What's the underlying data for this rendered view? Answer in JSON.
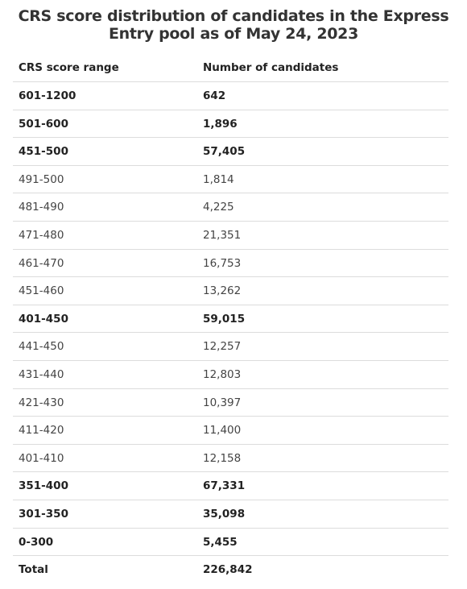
{
  "chart_data": {
    "type": "table",
    "title": "CRS score distribution of candidates in the Express Entry pool as of May 24, 2023",
    "columns": [
      "CRS score range",
      "Number of candidates"
    ],
    "rows": [
      {
        "range": "601-1200",
        "count": "642",
        "bold": true
      },
      {
        "range": "501-600",
        "count": "1,896",
        "bold": true
      },
      {
        "range": "451-500",
        "count": "57,405",
        "bold": true
      },
      {
        "range": "491-500",
        "count": "1,814",
        "bold": false
      },
      {
        "range": "481-490",
        "count": "4,225",
        "bold": false
      },
      {
        "range": "471-480",
        "count": "21,351",
        "bold": false
      },
      {
        "range": "461-470",
        "count": "16,753",
        "bold": false
      },
      {
        "range": "451-460",
        "count": "13,262",
        "bold": false
      },
      {
        "range": "401-450",
        "count": "59,015",
        "bold": true
      },
      {
        "range": "441-450",
        "count": "12,257",
        "bold": false
      },
      {
        "range": "431-440",
        "count": "12,803",
        "bold": false
      },
      {
        "range": "421-430",
        "count": "10,397",
        "bold": false
      },
      {
        "range": "411-420",
        "count": "11,400",
        "bold": false
      },
      {
        "range": "401-410",
        "count": "12,158",
        "bold": false
      },
      {
        "range": "351-400",
        "count": "67,331",
        "bold": true
      },
      {
        "range": "301-350",
        "count": "35,098",
        "bold": true
      },
      {
        "range": "0-300",
        "count": "5,455",
        "bold": true
      },
      {
        "range": "Total",
        "count": "226,842",
        "bold": true
      }
    ]
  }
}
